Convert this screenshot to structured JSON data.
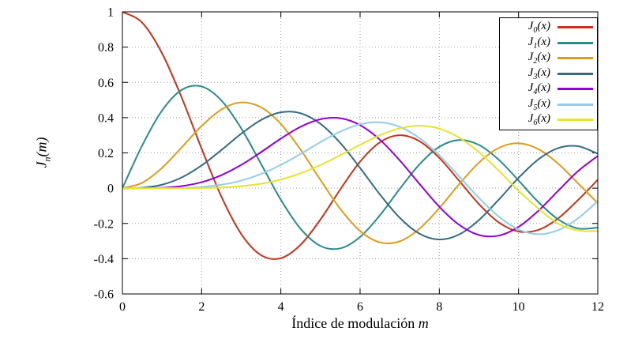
{
  "chart_data": {
    "type": "line",
    "title": "",
    "xlabel_text": "Índice de modulación ",
    "xlabel_var": "m",
    "ylabel_base": "J",
    "ylabel_sub": "n",
    "ylabel_rest": "(m)",
    "xlim": [
      0,
      12
    ],
    "ylim": [
      -0.6,
      1
    ],
    "xticks": [
      0,
      2,
      4,
      6,
      8,
      10,
      12
    ],
    "xticklabels": [
      "0",
      "2",
      "4",
      "6",
      "8",
      "10",
      "12"
    ],
    "yticks": [
      1,
      0.8,
      0.6,
      0.4,
      0.2,
      0,
      -0.2,
      -0.4,
      -0.6
    ],
    "yticklabels": [
      "1",
      "0.8",
      "0.6",
      "0.4",
      "0.2",
      "0",
      "-0.2",
      "-0.4",
      "-0.6"
    ],
    "grid": true,
    "grid_color": "#9a9a9a",
    "axis_color": "#000000",
    "background": "#ffffff",
    "legend_position": "top-right",
    "x": [
      0,
      0.5,
      1,
      1.5,
      2,
      2.5,
      3,
      3.5,
      4,
      4.5,
      5,
      5.5,
      6,
      6.5,
      7,
      7.5,
      8,
      8.5,
      9,
      9.5,
      10,
      10.5,
      11,
      11.5,
      12
    ],
    "series": [
      {
        "name": "J0(x)",
        "label_base": "J",
        "label_sub": "0",
        "label_rest": "(x)",
        "color": "#c5341b",
        "values": [
          1,
          0.9385,
          0.7652,
          0.5118,
          0.2239,
          -0.0484,
          -0.2601,
          -0.3801,
          -0.3971,
          -0.3205,
          -0.1776,
          -0.0068,
          0.1506,
          0.2601,
          0.3001,
          0.2663,
          0.1717,
          0.0419,
          -0.0903,
          -0.1939,
          -0.2459,
          -0.2366,
          -0.1712,
          -0.0677,
          0.0477
        ]
      },
      {
        "name": "J1(x)",
        "label_base": "J",
        "label_sub": "1",
        "label_rest": "(x)",
        "color": "#2b8a8a",
        "values": [
          0,
          0.2423,
          0.4401,
          0.5579,
          0.5767,
          0.4971,
          0.3391,
          0.1374,
          -0.066,
          -0.2311,
          -0.3276,
          -0.3414,
          -0.2767,
          -0.1538,
          -0.0047,
          0.1352,
          0.2346,
          0.2731,
          0.2453,
          0.1613,
          0.0435,
          -0.0789,
          -0.1768,
          -0.2284,
          -0.2234
        ]
      },
      {
        "name": "J2(x)",
        "label_base": "J",
        "label_sub": "2",
        "label_rest": "(x)",
        "color": "#dc9d1e",
        "values": [
          0,
          0.0306,
          0.1149,
          0.2321,
          0.3528,
          0.4461,
          0.4861,
          0.4586,
          0.3641,
          0.2178,
          0.0466,
          -0.1173,
          -0.2429,
          -0.3074,
          -0.3014,
          -0.2303,
          -0.113,
          0.0223,
          0.1448,
          0.2279,
          0.2546,
          0.2216,
          0.139,
          0.0279,
          -0.0849
        ]
      },
      {
        "name": "J3(x)",
        "label_base": "J",
        "label_sub": "3",
        "label_rest": "(x)",
        "color": "#356b87",
        "values": [
          0,
          0.0026,
          0.0196,
          0.061,
          0.1289,
          0.2166,
          0.3091,
          0.3868,
          0.4302,
          0.4247,
          0.3648,
          0.2561,
          0.1148,
          -0.0353,
          -0.1676,
          -0.2581,
          -0.2911,
          -0.2626,
          -0.1809,
          -0.0653,
          0.0584,
          0.1633,
          0.2273,
          0.2381,
          0.1951
        ]
      },
      {
        "name": "J4(x)",
        "label_base": "J",
        "label_sub": "4",
        "label_rest": "(x)",
        "color": "#9400d3",
        "values": [
          0,
          0.0002,
          0.0025,
          0.0118,
          0.034,
          0.0738,
          0.132,
          0.2044,
          0.2811,
          0.3484,
          0.3912,
          0.3967,
          0.3576,
          0.2748,
          0.1578,
          0.0238,
          -0.1054,
          -0.2077,
          -0.2655,
          -0.2691,
          -0.2196,
          -0.1283,
          -0.015,
          0.0963,
          0.1825
        ]
      },
      {
        "name": "J5(x)",
        "label_base": "J",
        "label_sub": "5",
        "label_rest": "(x)",
        "color": "#93cde8",
        "values": [
          0,
          0.0,
          0.0002,
          0.0018,
          0.007,
          0.0195,
          0.043,
          0.0804,
          0.1321,
          0.1947,
          0.2611,
          0.3209,
          0.3621,
          0.3736,
          0.3479,
          0.2835,
          0.1858,
          0.0671,
          -0.055,
          -0.1613,
          -0.2341,
          -0.2611,
          -0.2383,
          -0.1711,
          -0.0735
        ]
      },
      {
        "name": "J6(x)",
        "label_base": "J",
        "label_sub": "6",
        "label_rest": "(x)",
        "color": "#e5e32e",
        "values": [
          0,
          0.0,
          0.0,
          0.0002,
          0.0012,
          0.0042,
          0.0114,
          0.0254,
          0.0491,
          0.0843,
          0.131,
          0.1868,
          0.2458,
          0.2999,
          0.3392,
          0.3541,
          0.3376,
          0.2867,
          0.2043,
          0.0993,
          -0.0145,
          -0.1154,
          -0.2016,
          -0.2401,
          -0.2437
        ]
      }
    ]
  }
}
